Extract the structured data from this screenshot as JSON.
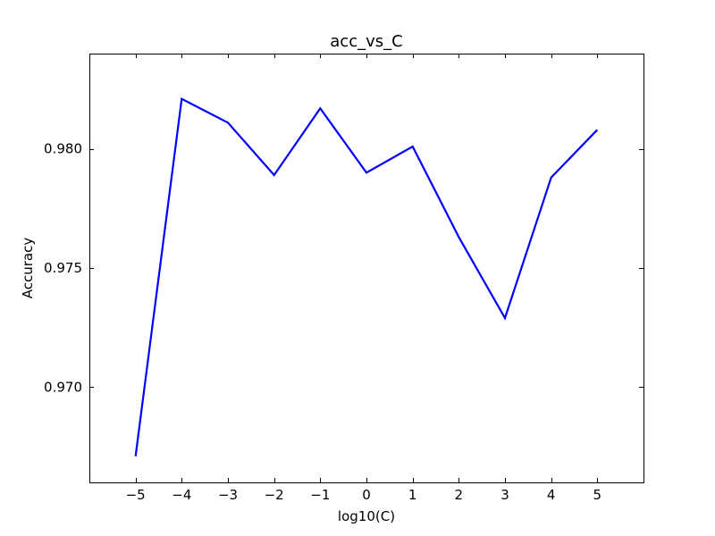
{
  "chart_data": {
    "type": "line",
    "title": "acc_vs_C",
    "xlabel": "log10(C)",
    "ylabel": "Accuracy",
    "xlim": [
      -6,
      6
    ],
    "ylim": [
      0.966,
      0.984
    ],
    "x_ticks": [
      -5,
      -4,
      -3,
      -2,
      -1,
      0,
      1,
      2,
      3,
      4,
      5
    ],
    "x_tick_labels": [
      "−5",
      "−4",
      "−3",
      "−2",
      "−1",
      "0",
      "1",
      "2",
      "3",
      "4",
      "5"
    ],
    "y_ticks": [
      0.97,
      0.975,
      0.98
    ],
    "y_tick_labels": [
      "0.970",
      "0.975",
      "0.980"
    ],
    "grid": false,
    "series": [
      {
        "color": "#0000ff",
        "x": [
          -5,
          -4,
          -3,
          -2,
          -1,
          0,
          1,
          2,
          3,
          4,
          5
        ],
        "y": [
          0.9671,
          0.9821,
          0.9811,
          0.9789,
          0.9817,
          0.979,
          0.9801,
          0.9763,
          0.9729,
          0.9788,
          0.9808
        ]
      }
    ]
  }
}
